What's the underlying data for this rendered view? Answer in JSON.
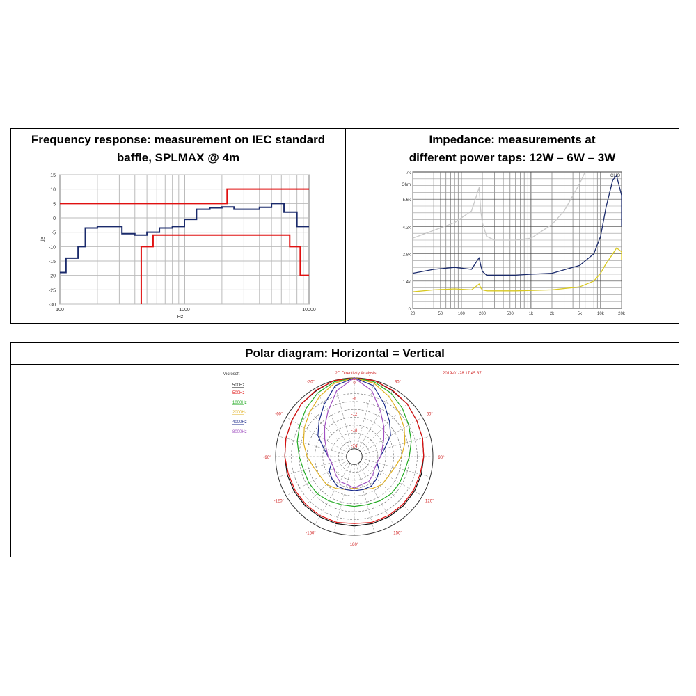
{
  "panels": {
    "freq_title": "Frequency response: measurement on IEC standard baffle, SPLMAX @ 4m",
    "freq_title_line1": "Frequency response: measurement on IEC standard",
    "freq_title_line2": "baffle, SPLMAX @ 4m",
    "imp_title_line1": "Impedance: measurements at",
    "imp_title_line2": "different power taps: 12W – 6W – 3W",
    "polar_title": "Polar diagram: Horizontal = Vertical"
  },
  "chart_data": [
    {
      "type": "line",
      "xlabel": "Hz",
      "ylabel": "dB",
      "xscale": "log",
      "xlim": [
        100,
        10000
      ],
      "ylim": [
        -30,
        15
      ],
      "xticks": [
        "100",
        "1000",
        "10000"
      ],
      "yticks": [
        "15",
        "10",
        "5",
        "0",
        "-5",
        "-10",
        "-15",
        "-20",
        "-25",
        "-30"
      ],
      "series": [
        {
          "color": "#1a2a6b",
          "step": true,
          "x": [
            100,
            112,
            125,
            140,
            160,
            200,
            250,
            315,
            400,
            500,
            630,
            800,
            1000,
            1250,
            1600,
            2000,
            2500,
            3150,
            4000,
            5000,
            6300,
            8000,
            10000
          ],
          "y": [
            -19,
            -14,
            -14,
            -10,
            -3.5,
            -3,
            -3,
            -5.5,
            -6,
            -5,
            -3.5,
            -3,
            -0.5,
            3,
            3.5,
            3.8,
            3,
            3,
            3.7,
            5,
            2,
            -3,
            -3
          ]
        },
        {
          "color": "#e01010",
          "step": true,
          "x": [
            100,
            2200,
            2200,
            10000
          ],
          "y": [
            5,
            5,
            10,
            10
          ]
        },
        {
          "color": "#e01010",
          "step": true,
          "x": [
            450,
            450,
            560,
            560,
            7000,
            7000,
            8500,
            8500,
            10000
          ],
          "y": [
            -30,
            -10,
            -10,
            -6,
            -6,
            -10,
            -10,
            -20,
            -20
          ]
        }
      ]
    },
    {
      "type": "line",
      "xscale": "log",
      "xlim": [
        20,
        20000
      ],
      "xticks": [
        "20",
        "50",
        "100",
        "200",
        "500",
        "1k",
        "2k",
        "5k",
        "10k",
        "20k"
      ],
      "yticks": [
        "7k",
        "Ohm",
        "5.6k",
        "4.2k",
        "2.8k",
        "1.4k",
        "0"
      ],
      "corner_label": "CLIO",
      "series": [
        {
          "color": "#c8c8c8",
          "x": [
            20,
            40,
            80,
            140,
            180,
            190,
            200,
            230,
            300,
            600,
            1000,
            2000,
            3000,
            5000,
            6000
          ],
          "y": [
            3600,
            4000,
            4400,
            5000,
            6200,
            5000,
            4400,
            3700,
            3500,
            3500,
            3600,
            4300,
            5000,
            6400,
            7000
          ]
        },
        {
          "color": "#1a2a6b",
          "x": [
            20,
            40,
            80,
            140,
            180,
            190,
            200,
            230,
            300,
            600,
            1000,
            2000,
            5000,
            8000,
            10000,
            12000,
            15000,
            17000,
            20000,
            22000
          ],
          "y": [
            1800,
            2000,
            2100,
            2000,
            2600,
            2200,
            1900,
            1700,
            1700,
            1700,
            1750,
            1800,
            2200,
            2800,
            3700,
            5200,
            6600,
            6800,
            5800,
            4200
          ]
        },
        {
          "color": "#d8c820",
          "x": [
            20,
            40,
            80,
            140,
            180,
            190,
            200,
            230,
            300,
            600,
            1000,
            2000,
            5000,
            8000,
            10000,
            12000,
            15000,
            17000,
            20000,
            22000
          ],
          "y": [
            850,
            950,
            1000,
            950,
            1250,
            1050,
            950,
            900,
            900,
            900,
            920,
            950,
            1100,
            1400,
            1800,
            2300,
            2800,
            3100,
            2900,
            2500
          ]
        }
      ]
    },
    {
      "type": "polar",
      "title": "2D Directivity Analysis",
      "timestamp": "2019-01-28 17.45.37",
      "header": "Microsoft",
      "unit": "dB",
      "radial_ticks": [
        "0",
        "-6",
        "-12",
        "-18",
        "-24"
      ],
      "angle_labels": [
        "-30°",
        "30°",
        "-60°",
        "60°",
        "-90°",
        "90°",
        "-120°",
        "120°",
        "-150°",
        "150°",
        "180°"
      ],
      "series": [
        {
          "name": "500Hz",
          "color": "#101010",
          "r": [
            0,
            0,
            -1,
            -1.5,
            -2.5,
            -3,
            -3.5,
            -3.5,
            -3.5,
            -3.5,
            -3.5,
            -3.5,
            -3.5
          ]
        },
        {
          "name": "500Hz",
          "color": "#e01010",
          "r": [
            0,
            0,
            -0.8,
            -1.5,
            -2.5,
            -3,
            -3.5,
            -4,
            -4,
            -4,
            -4,
            -4,
            -4.5
          ]
        },
        {
          "name": "1000Hz",
          "color": "#22aa22",
          "r": [
            0,
            -0.5,
            -2,
            -4,
            -6,
            -7.5,
            -9,
            -10,
            -10,
            -10,
            -10.5,
            -11,
            -11
          ]
        },
        {
          "name": "2000Hz",
          "color": "#e0b020",
          "r": [
            0,
            -1,
            -3.5,
            -6,
            -8,
            -10,
            -12,
            -14,
            -15,
            -15,
            -16,
            -17,
            -18
          ]
        },
        {
          "name": "4000Hz",
          "color": "#1a2a8b",
          "r": [
            0,
            -2,
            -7,
            -11,
            -14,
            -18,
            -20,
            -21,
            -19,
            -18,
            -17,
            -17,
            -17
          ]
        },
        {
          "name": "8000Hz",
          "color": "#a050c0",
          "r": [
            0,
            -4,
            -10,
            -14,
            -17,
            -19,
            -20,
            -21,
            -21,
            -20,
            -19,
            -19,
            -18
          ]
        }
      ],
      "angles_deg": [
        0,
        15,
        30,
        45,
        60,
        75,
        90,
        105,
        120,
        135,
        150,
        165,
        180
      ]
    }
  ]
}
